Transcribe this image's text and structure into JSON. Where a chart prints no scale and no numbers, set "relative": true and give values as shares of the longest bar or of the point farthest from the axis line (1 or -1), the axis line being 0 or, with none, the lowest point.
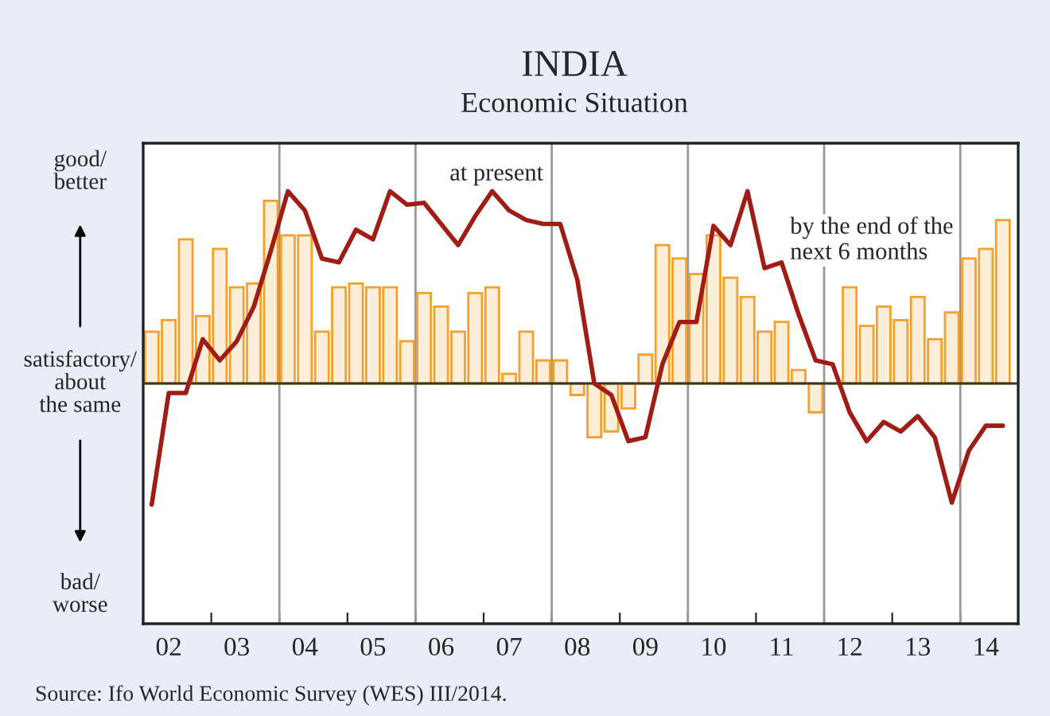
{
  "chart_data": {
    "type": "bar",
    "title": "INDIA",
    "subtitle": "Economic Situation",
    "relative": true,
    "categories": [
      null,
      "02",
      null,
      null,
      null,
      "03",
      null,
      null,
      null,
      "04",
      null,
      null,
      null,
      "05",
      null,
      null,
      null,
      "06",
      null,
      null,
      null,
      "07",
      null,
      null,
      null,
      "08",
      null,
      null,
      null,
      "09",
      null,
      null,
      null,
      "10",
      null,
      null,
      null,
      "11",
      null,
      null,
      null,
      "12",
      null,
      null,
      null,
      "13",
      null,
      null,
      null,
      "14",
      null
    ],
    "series": [
      {
        "name": "by the end of the\nnext 6 months",
        "color": "#f5a02a",
        "values": [
          0.27,
          0.33,
          0.75,
          0.35,
          0.7,
          0.5,
          0.52,
          0.95,
          0.77,
          0.77,
          0.27,
          0.5,
          0.52,
          0.5,
          0.5,
          0.22,
          0.47,
          0.4,
          0.27,
          0.47,
          0.5,
          0.05,
          0.27,
          0.12,
          0.12,
          -0.06,
          -0.28,
          -0.25,
          -0.13,
          0.15,
          0.72,
          0.65,
          0.57,
          0.77,
          0.55,
          0.45,
          0.27,
          0.32,
          0.07,
          -0.15,
          0,
          0.5,
          0.3,
          0.4,
          0.33,
          0.45,
          0.23,
          0.37,
          0.65,
          0.7,
          0.85
        ]
      },
      {
        "type": "line",
        "name": "at present",
        "color": "#a01c14",
        "values": [
          -0.63,
          -0.05,
          -0.05,
          0.23,
          0.12,
          0.22,
          0.4,
          0.69,
          1,
          0.9,
          0.65,
          0.63,
          0.8,
          0.75,
          1,
          0.93,
          0.94,
          0.83,
          0.72,
          0.87,
          1,
          0.9,
          0.85,
          0.83,
          0.83,
          0.54,
          0,
          -0.06,
          -0.3,
          -0.28,
          0.1,
          0.32,
          0.32,
          0.82,
          0.72,
          1,
          0.6,
          0.63,
          0.36,
          0.12,
          0.1,
          -0.15,
          -0.3,
          -0.2,
          -0.25,
          -0.17,
          -0.28,
          -0.62,
          -0.35,
          -0.22,
          -0.22
        ]
      }
    ],
    "ref_lines": [
      {
        "axis": "y",
        "value": 0,
        "color": "#333333"
      }
    ],
    "annotations": [
      "good/\nbetter",
      "satisfactory/\nabout\nthe same",
      "bad/\nworse",
      "Source: Ifo World Economic Survey (WES) III/2014."
    ],
    "grid": false,
    "legend": false,
    "line_style": "solid",
    "marker": "none"
  }
}
